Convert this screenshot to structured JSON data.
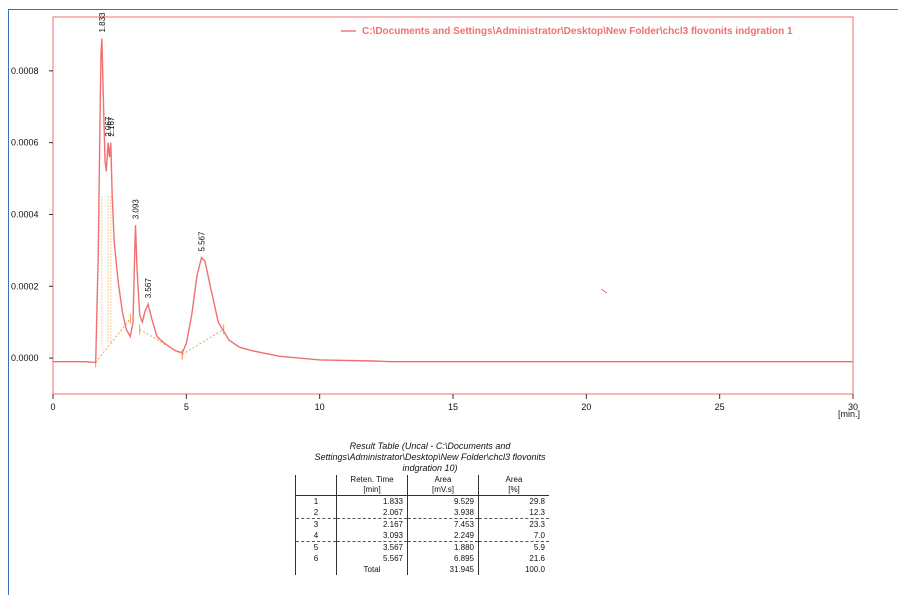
{
  "chart_data": {
    "type": "line",
    "legend_label": "C:\\Documents and Settings\\Administrator\\Desktop\\New Folder\\chcl3 flovonits indgration 1",
    "legend_position": "top-right",
    "xlabel": "[min.]",
    "xlim": [
      0,
      30
    ],
    "ylim": [
      -0.0001,
      0.00095
    ],
    "xticks": [
      0,
      5,
      10,
      15,
      20,
      25,
      30
    ],
    "yticks": [
      0.0,
      0.0002,
      0.0004,
      0.0006,
      0.0008
    ],
    "ytick_labels": [
      "0.0000",
      "0.0002",
      "0.0004",
      "0.0006",
      "0.0008"
    ],
    "xtick_labels": [
      "0",
      "5",
      "10",
      "15",
      "20",
      "25",
      "30"
    ],
    "line_color": "#f07070",
    "series": [
      {
        "x": [
          0,
          1.2,
          1.6,
          1.7,
          1.75,
          1.8,
          1.833,
          1.88,
          1.95,
          2.0,
          2.067,
          2.12,
          2.167,
          2.22,
          2.3,
          2.45,
          2.6,
          2.75,
          2.9,
          3.0,
          3.05,
          3.093,
          3.15,
          3.25,
          3.35,
          3.45,
          3.567,
          3.7,
          3.9,
          4.2,
          4.6,
          4.85,
          5.0,
          5.2,
          5.4,
          5.567,
          5.7,
          5.9,
          6.2,
          6.6,
          7.0,
          7.5,
          8.5,
          10,
          12,
          12.7,
          13,
          15,
          20,
          25,
          30
        ],
        "y": [
          -1e-05,
          -1e-05,
          -1.2e-05,
          0.0003,
          0.0006,
          0.00085,
          0.00089,
          0.00075,
          0.00055,
          0.00052,
          0.0006,
          0.00056,
          0.0006,
          0.00045,
          0.00032,
          0.00021,
          0.00013,
          8e-05,
          6e-05,
          0.0001,
          0.00025,
          0.00037,
          0.00025,
          0.00012,
          0.0001,
          0.00013,
          0.00015,
          0.00011,
          6e-05,
          4e-05,
          2e-05,
          1.5e-05,
          4e-05,
          0.00012,
          0.00023,
          0.00028,
          0.00027,
          0.0002,
          0.0001,
          5e-05,
          3e-05,
          2e-05,
          5e-06,
          -5e-06,
          -8e-06,
          -1e-05,
          -1e-05,
          -1e-05,
          -1e-05,
          -1e-05,
          -1e-05
        ]
      }
    ],
    "peak_labels": [
      {
        "x": 1.833,
        "y": 0.00089,
        "text": "1.833"
      },
      {
        "x": 2.067,
        "y": 0.0006,
        "text": "2.067"
      },
      {
        "x": 2.167,
        "y": 0.0006,
        "text": "2.167"
      },
      {
        "x": 3.093,
        "y": 0.00037,
        "text": "3.093"
      },
      {
        "x": 3.567,
        "y": 0.00015,
        "text": "3.567"
      },
      {
        "x": 5.567,
        "y": 0.00028,
        "text": "5.567"
      }
    ],
    "baselines": [
      {
        "x1": 1.6,
        "y1": -1.2e-05,
        "x2": 2.9,
        "y2": 0.00011
      },
      {
        "x1": 3.25,
        "y1": 8e-05,
        "x2": 4.85,
        "y2": 1e-05
      },
      {
        "x1": 4.85,
        "y1": 1e-05,
        "x2": 6.4,
        "y2": 8e-05
      }
    ]
  },
  "result_table": {
    "caption": "Result Table (Uncal - C:\\Documents and Settings\\Administrator\\Desktop\\New Folder\\chcl3 flovonits indgration 10)",
    "headers": [
      {
        "line1": "",
        "line2": ""
      },
      {
        "line1": "Reten. Time",
        "line2": "[min]"
      },
      {
        "line1": "Area",
        "line2": "[mV.s]"
      },
      {
        "line1": "Area",
        "line2": "[%]"
      }
    ],
    "rows": [
      [
        "1",
        "1.833",
        "9.529",
        "29.8"
      ],
      [
        "2",
        "2.067",
        "3.938",
        "12.3"
      ],
      [
        "3",
        "2.167",
        "7.453",
        "23.3"
      ],
      [
        "4",
        "3.093",
        "2.249",
        "7.0"
      ],
      [
        "5",
        "3.567",
        "1.880",
        "5.9"
      ],
      [
        "6",
        "5.567",
        "6.895",
        "21.6"
      ],
      [
        "",
        "Total",
        "31.945",
        "100.0"
      ]
    ]
  }
}
